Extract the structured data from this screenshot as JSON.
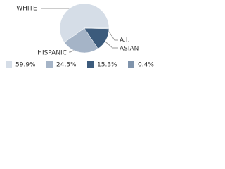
{
  "chart_data": {
    "type": "pie",
    "categories": [
      "WHITE",
      "HISPANIC",
      "ASIAN",
      "A.I."
    ],
    "values": [
      59.9,
      24.5,
      15.3,
      0.4
    ],
    "value_labels": [
      "59.9%",
      "24.5%",
      "15.3%",
      "0.4%"
    ],
    "colors": [
      "#d5dde7",
      "#a5b4c7",
      "#3c5b7c",
      "#8094ac"
    ]
  }
}
